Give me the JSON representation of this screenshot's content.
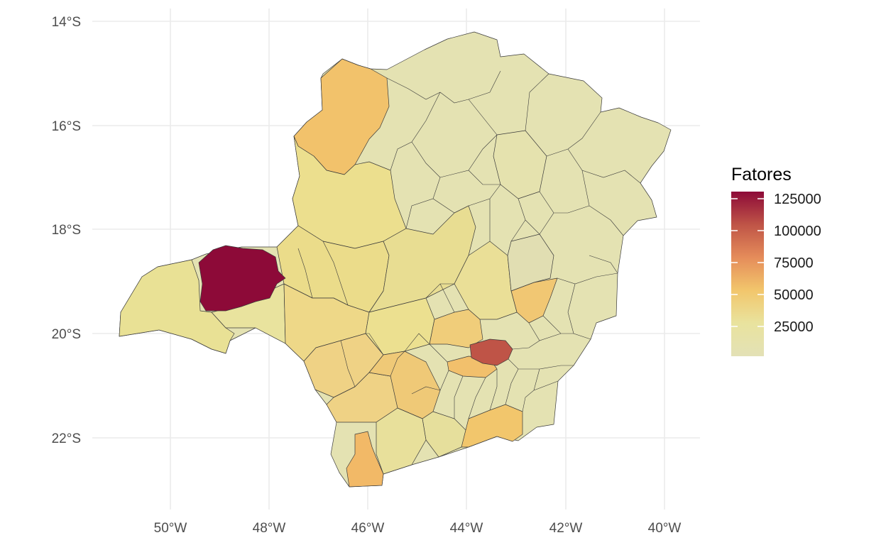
{
  "chart_data": {
    "type": "choropleth",
    "region": "Minas Gerais, Brasil",
    "x_axis": {
      "ticks": [
        "50°W",
        "48°W",
        "46°W",
        "44°W",
        "42°W",
        "40°W"
      ]
    },
    "y_axis": {
      "ticks": [
        "14°S",
        "16°S",
        "18°S",
        "20°S",
        "22°S"
      ]
    },
    "legend": {
      "title": "Fatores",
      "labels": [
        "125000",
        "100000",
        "75000",
        "50000",
        "25000"
      ],
      "placement": "right",
      "colors": [
        "#e3e1b6",
        "#e9e39e",
        "#f2c66c",
        "#e58c5a",
        "#bf5447",
        "#8d0a38"
      ],
      "range": [
        0,
        130000
      ]
    },
    "grid": true,
    "highlights": [
      {
        "location": "48-49°W, 18.5-19.5°S",
        "value": 130000,
        "color": "#8d0a38"
      },
      {
        "location": "43.5°W, 20.3°S",
        "value": 95000,
        "color": "#bf5447"
      },
      {
        "location": "46.3°W, 22.4°S",
        "value": 55000,
        "color": "#f2b967"
      },
      {
        "location": "43.2°W, 21.8°S",
        "value": 52000,
        "color": "#f2c66c"
      },
      {
        "location": "46.8°W, 16.5°S",
        "value": 50000,
        "color": "#f2c26b"
      },
      {
        "location": "43.9°W, 20.7°S",
        "value": 48000,
        "color": "#f2bd68"
      }
    ]
  }
}
